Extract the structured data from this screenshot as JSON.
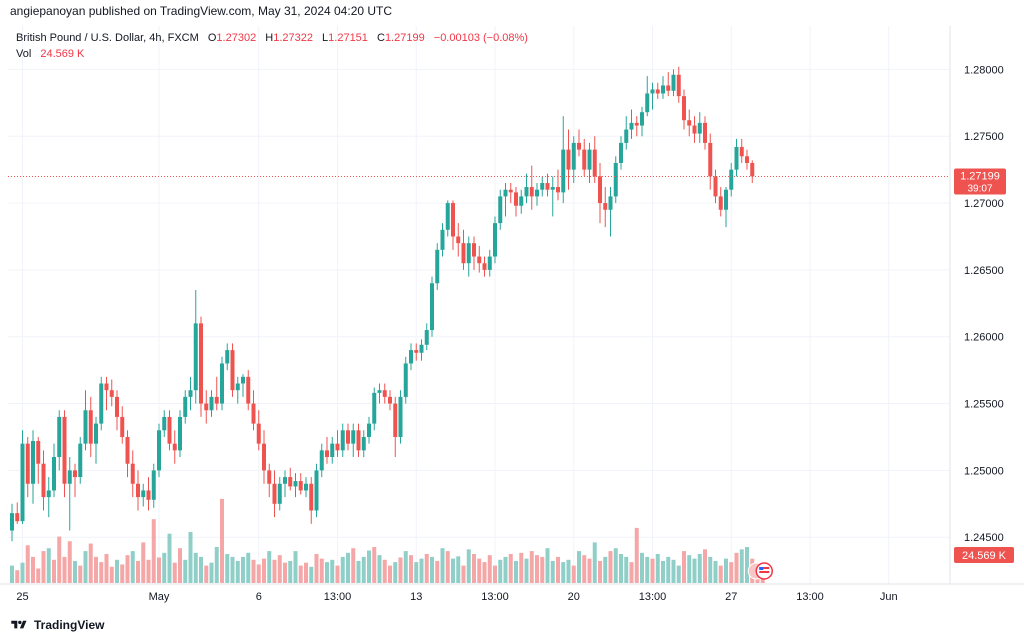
{
  "header": {
    "publisher_text": "angiepanoyan published on TradingView.com, May 31, 2024 04:20 UTC"
  },
  "legend": {
    "symbol": "British Pound / U.S. Dollar, 4h, FXCM",
    "o_label": "O",
    "o_value": "1.27302",
    "h_label": "H",
    "h_value": "1.27322",
    "l_label": "L",
    "l_value": "1.27151",
    "c_label": "C",
    "c_value": "1.27199",
    "change": "−0.00103 (−0.08%)",
    "vol_label": "Vol",
    "vol_value": "24.569 K"
  },
  "price_badge": {
    "price": "1.27199",
    "countdown": "39:07"
  },
  "volume_badge": "24.569 K",
  "footer": {
    "brand": "TradingView"
  },
  "colors": {
    "up": "#26a69a",
    "down": "#ef5350",
    "up_vol": "#8fcfc8",
    "down_vol": "#f5a6a6",
    "grid": "#f0f3fa",
    "axis_text": "#131722"
  },
  "chart_data": {
    "type": "candlestick",
    "ylim": [
      1.2415,
      1.2825
    ],
    "y_ticks": [
      1.245,
      1.25,
      1.255,
      1.26,
      1.265,
      1.27,
      1.275,
      1.28
    ],
    "y_tick_labels": [
      "1.24500",
      "1.25000",
      "1.25500",
      "1.26000",
      "1.26500",
      "1.27000",
      "1.27500",
      "1.28000"
    ],
    "x_tick_labels": [
      {
        "index": 2,
        "label": "25"
      },
      {
        "index": 28,
        "label": "May"
      },
      {
        "index": 47,
        "label": "6"
      },
      {
        "index": 62,
        "label": "13:00"
      },
      {
        "index": 77,
        "label": "13"
      },
      {
        "index": 92,
        "label": "13:00"
      },
      {
        "index": 107,
        "label": "20"
      },
      {
        "index": 122,
        "label": "13:00"
      },
      {
        "index": 137,
        "label": "27"
      },
      {
        "index": 152,
        "label": "13:00"
      },
      {
        "index": 167,
        "label": "Jun"
      }
    ],
    "last_close": 1.27199,
    "ohlc": [
      [
        1.2455,
        1.2475,
        1.2447,
        1.2468
      ],
      [
        1.2468,
        1.2476,
        1.246,
        1.2462
      ],
      [
        1.2462,
        1.253,
        1.246,
        1.252
      ],
      [
        1.252,
        1.2525,
        1.248,
        1.249
      ],
      [
        1.249,
        1.253,
        1.2475,
        1.2522
      ],
      [
        1.2522,
        1.2525,
        1.249,
        1.2505
      ],
      [
        1.2505,
        1.2515,
        1.247,
        1.248
      ],
      [
        1.248,
        1.2495,
        1.2465,
        1.2485
      ],
      [
        1.2485,
        1.252,
        1.248,
        1.251
      ],
      [
        1.251,
        1.2545,
        1.25,
        1.254
      ],
      [
        1.254,
        1.2545,
        1.248,
        1.249
      ],
      [
        1.249,
        1.251,
        1.2455,
        1.25
      ],
      [
        1.25,
        1.2505,
        1.248,
        1.2495
      ],
      [
        1.2495,
        1.2525,
        1.249,
        1.252
      ],
      [
        1.252,
        1.256,
        1.2515,
        1.2545
      ],
      [
        1.2545,
        1.2555,
        1.251,
        1.252
      ],
      [
        1.252,
        1.254,
        1.2505,
        1.2535
      ],
      [
        1.2535,
        1.257,
        1.253,
        1.2565
      ],
      [
        1.2565,
        1.257,
        1.2545,
        1.256
      ],
      [
        1.256,
        1.2568,
        1.2548,
        1.2555
      ],
      [
        1.2555,
        1.256,
        1.253,
        1.254
      ],
      [
        1.254,
        1.2548,
        1.252,
        1.2525
      ],
      [
        1.2525,
        1.253,
        1.2495,
        1.2505
      ],
      [
        1.2505,
        1.2515,
        1.248,
        1.249
      ],
      [
        1.249,
        1.25,
        1.247,
        1.248
      ],
      [
        1.248,
        1.249,
        1.2473,
        1.2485
      ],
      [
        1.2485,
        1.2495,
        1.247,
        1.2478
      ],
      [
        1.2478,
        1.2505,
        1.2472,
        1.25
      ],
      [
        1.25,
        1.2535,
        1.2495,
        1.253
      ],
      [
        1.253,
        1.2545,
        1.2525,
        1.254
      ],
      [
        1.254,
        1.2545,
        1.2515,
        1.252
      ],
      [
        1.252,
        1.253,
        1.2505,
        1.2515
      ],
      [
        1.2515,
        1.2545,
        1.251,
        1.254
      ],
      [
        1.254,
        1.256,
        1.2535,
        1.2555
      ],
      [
        1.2555,
        1.257,
        1.2545,
        1.256
      ],
      [
        1.256,
        1.2635,
        1.255,
        1.261
      ],
      [
        1.261,
        1.2615,
        1.254,
        1.255
      ],
      [
        1.255,
        1.256,
        1.2535,
        1.2545
      ],
      [
        1.2545,
        1.256,
        1.254,
        1.2555
      ],
      [
        1.2555,
        1.257,
        1.2545,
        1.255
      ],
      [
        1.255,
        1.2585,
        1.2545,
        1.258
      ],
      [
        1.258,
        1.2595,
        1.2575,
        1.259
      ],
      [
        1.259,
        1.2595,
        1.2555,
        1.256
      ],
      [
        1.256,
        1.257,
        1.255,
        1.2565
      ],
      [
        1.2565,
        1.2572,
        1.2555,
        1.257
      ],
      [
        1.257,
        1.2575,
        1.2545,
        1.255
      ],
      [
        1.255,
        1.256,
        1.253,
        1.2535
      ],
      [
        1.2535,
        1.2545,
        1.2515,
        1.252
      ],
      [
        1.252,
        1.253,
        1.249,
        1.25
      ],
      [
        1.25,
        1.2505,
        1.248,
        1.249
      ],
      [
        1.249,
        1.25,
        1.2465,
        1.2475
      ],
      [
        1.2475,
        1.2495,
        1.247,
        1.249
      ],
      [
        1.249,
        1.25,
        1.248,
        1.2495
      ],
      [
        1.2495,
        1.2502,
        1.2485,
        1.2488
      ],
      [
        1.2488,
        1.2498,
        1.248,
        1.2492
      ],
      [
        1.2492,
        1.2498,
        1.2482,
        1.2485
      ],
      [
        1.2485,
        1.2495,
        1.248,
        1.249
      ],
      [
        1.249,
        1.2495,
        1.246,
        1.247
      ],
      [
        1.247,
        1.2505,
        1.2465,
        1.25
      ],
      [
        1.25,
        1.252,
        1.2495,
        1.2515
      ],
      [
        1.2515,
        1.2525,
        1.2505,
        1.251
      ],
      [
        1.251,
        1.2525,
        1.2505,
        1.252
      ],
      [
        1.252,
        1.253,
        1.251,
        1.2515
      ],
      [
        1.2515,
        1.2535,
        1.251,
        1.253
      ],
      [
        1.253,
        1.2535,
        1.2515,
        1.252
      ],
      [
        1.252,
        1.2535,
        1.251,
        1.253
      ],
      [
        1.253,
        1.2535,
        1.251,
        1.2515
      ],
      [
        1.2515,
        1.253,
        1.251,
        1.2525
      ],
      [
        1.2525,
        1.254,
        1.252,
        1.2535
      ],
      [
        1.2535,
        1.2562,
        1.253,
        1.2558
      ],
      [
        1.2558,
        1.2565,
        1.255,
        1.256
      ],
      [
        1.256,
        1.2565,
        1.255,
        1.2555
      ],
      [
        1.2555,
        1.256,
        1.2545,
        1.255
      ],
      [
        1.255,
        1.2555,
        1.251,
        1.2525
      ],
      [
        1.2525,
        1.256,
        1.252,
        1.2555
      ],
      [
        1.2555,
        1.2585,
        1.255,
        1.258
      ],
      [
        1.258,
        1.2595,
        1.2575,
        1.259
      ],
      [
        1.259,
        1.2595,
        1.2582,
        1.2588
      ],
      [
        1.2588,
        1.2598,
        1.2582,
        1.2594
      ],
      [
        1.2594,
        1.261,
        1.259,
        1.2605
      ],
      [
        1.2605,
        1.2645,
        1.26,
        1.264
      ],
      [
        1.264,
        1.267,
        1.2635,
        1.2665
      ],
      [
        1.2665,
        1.2685,
        1.266,
        1.268
      ],
      [
        1.268,
        1.2702,
        1.2675,
        1.27
      ],
      [
        1.27,
        1.2702,
        1.2665,
        1.2675
      ],
      [
        1.2675,
        1.2685,
        1.266,
        1.267
      ],
      [
        1.267,
        1.268,
        1.265,
        1.2655
      ],
      [
        1.2655,
        1.2675,
        1.2645,
        1.267
      ],
      [
        1.267,
        1.2675,
        1.265,
        1.266
      ],
      [
        1.266,
        1.2668,
        1.2648,
        1.2655
      ],
      [
        1.2655,
        1.266,
        1.2645,
        1.265
      ],
      [
        1.265,
        1.2665,
        1.2645,
        1.266
      ],
      [
        1.266,
        1.269,
        1.2655,
        1.2685
      ],
      [
        1.2685,
        1.271,
        1.268,
        1.2705
      ],
      [
        1.2705,
        1.2715,
        1.269,
        1.271
      ],
      [
        1.271,
        1.2715,
        1.27,
        1.2708
      ],
      [
        1.2708,
        1.2712,
        1.269,
        1.2698
      ],
      [
        1.2698,
        1.271,
        1.2692,
        1.2705
      ],
      [
        1.2705,
        1.2722,
        1.27,
        1.2712
      ],
      [
        1.2712,
        1.2728,
        1.2695,
        1.2705
      ],
      [
        1.2705,
        1.2715,
        1.2698,
        1.271
      ],
      [
        1.271,
        1.272,
        1.2705,
        1.2715
      ],
      [
        1.2715,
        1.2722,
        1.2705,
        1.271
      ],
      [
        1.271,
        1.272,
        1.269,
        1.2712
      ],
      [
        1.2712,
        1.2725,
        1.2702,
        1.2708
      ],
      [
        1.2708,
        1.2765,
        1.27,
        1.274
      ],
      [
        1.274,
        1.2755,
        1.271,
        1.2725
      ],
      [
        1.2725,
        1.275,
        1.2715,
        1.2745
      ],
      [
        1.2745,
        1.2755,
        1.2735,
        1.274
      ],
      [
        1.274,
        1.2748,
        1.272,
        1.2725
      ],
      [
        1.2725,
        1.2745,
        1.2715,
        1.274
      ],
      [
        1.274,
        1.275,
        1.2715,
        1.272
      ],
      [
        1.272,
        1.273,
        1.2685,
        1.27
      ],
      [
        1.27,
        1.2712,
        1.2682,
        1.2695
      ],
      [
        1.2695,
        1.2712,
        1.2675,
        1.2705
      ],
      [
        1.2705,
        1.2735,
        1.27,
        1.273
      ],
      [
        1.273,
        1.275,
        1.2725,
        1.2745
      ],
      [
        1.2745,
        1.2765,
        1.274,
        1.2755
      ],
      [
        1.2755,
        1.277,
        1.2748,
        1.276
      ],
      [
        1.276,
        1.2765,
        1.275,
        1.2758
      ],
      [
        1.2758,
        1.2772,
        1.275,
        1.2768
      ],
      [
        1.2768,
        1.2795,
        1.2765,
        1.2782
      ],
      [
        1.2782,
        1.279,
        1.277,
        1.2785
      ],
      [
        1.2785,
        1.279,
        1.2778,
        1.2782
      ],
      [
        1.2782,
        1.2795,
        1.2778,
        1.2788
      ],
      [
        1.2788,
        1.2798,
        1.278,
        1.2784
      ],
      [
        1.2784,
        1.28,
        1.278,
        1.2796
      ],
      [
        1.2796,
        1.2802,
        1.2775,
        1.278
      ],
      [
        1.278,
        1.2785,
        1.2755,
        1.2762
      ],
      [
        1.2762,
        1.277,
        1.275,
        1.2758
      ],
      [
        1.2758,
        1.2765,
        1.2745,
        1.2752
      ],
      [
        1.2752,
        1.2768,
        1.2745,
        1.276
      ],
      [
        1.276,
        1.2765,
        1.274,
        1.2745
      ],
      [
        1.2745,
        1.2752,
        1.271,
        1.272
      ],
      [
        1.272,
        1.2725,
        1.27,
        1.2705
      ],
      [
        1.2705,
        1.2712,
        1.269,
        1.2695
      ],
      [
        1.2695,
        1.2712,
        1.2682,
        1.271
      ],
      [
        1.271,
        1.273,
        1.2705,
        1.2725
      ],
      [
        1.2725,
        1.2748,
        1.272,
        1.2742
      ],
      [
        1.2742,
        1.2748,
        1.273,
        1.2735
      ],
      [
        1.2735,
        1.274,
        1.2725,
        1.273
      ],
      [
        1.273,
        1.2732,
        1.2715,
        1.272
      ]
    ],
    "volume": [
      [
        0.3,
        1
      ],
      [
        0.22,
        0
      ],
      [
        0.35,
        1
      ],
      [
        0.65,
        0
      ],
      [
        0.45,
        0
      ],
      [
        0.25,
        0
      ],
      [
        0.55,
        0
      ],
      [
        0.6,
        1
      ],
      [
        0.4,
        0
      ],
      [
        0.8,
        0
      ],
      [
        0.45,
        0
      ],
      [
        0.72,
        0
      ],
      [
        0.38,
        1
      ],
      [
        0.3,
        0
      ],
      [
        0.55,
        1
      ],
      [
        0.68,
        0
      ],
      [
        0.45,
        0
      ],
      [
        0.36,
        0
      ],
      [
        0.5,
        0
      ],
      [
        0.28,
        0
      ],
      [
        0.4,
        1
      ],
      [
        0.32,
        0
      ],
      [
        0.48,
        0
      ],
      [
        0.55,
        1
      ],
      [
        0.38,
        0
      ],
      [
        0.7,
        0
      ],
      [
        0.4,
        0
      ],
      [
        1.1,
        0
      ],
      [
        0.44,
        0
      ],
      [
        0.52,
        1
      ],
      [
        0.85,
        1
      ],
      [
        0.35,
        0
      ],
      [
        0.6,
        0
      ],
      [
        0.4,
        1
      ],
      [
        0.88,
        1
      ],
      [
        0.52,
        1
      ],
      [
        0.45,
        1
      ],
      [
        0.3,
        0
      ],
      [
        0.35,
        1
      ],
      [
        0.62,
        1
      ],
      [
        1.45,
        0
      ],
      [
        0.5,
        1
      ],
      [
        0.45,
        1
      ],
      [
        0.38,
        1
      ],
      [
        0.45,
        1
      ],
      [
        0.52,
        1
      ],
      [
        0.4,
        0
      ],
      [
        0.32,
        0
      ],
      [
        0.42,
        0
      ],
      [
        0.55,
        1
      ],
      [
        0.4,
        0
      ],
      [
        0.48,
        0
      ],
      [
        0.35,
        0
      ],
      [
        0.38,
        1
      ],
      [
        0.55,
        1
      ],
      [
        0.3,
        0
      ],
      [
        0.35,
        0
      ],
      [
        0.28,
        1
      ],
      [
        0.5,
        0
      ],
      [
        0.42,
        0
      ],
      [
        0.36,
        1
      ],
      [
        0.4,
        1
      ],
      [
        0.3,
        0
      ],
      [
        0.45,
        1
      ],
      [
        0.52,
        1
      ],
      [
        0.6,
        0
      ],
      [
        0.38,
        1
      ],
      [
        0.45,
        1
      ],
      [
        0.56,
        1
      ],
      [
        0.62,
        0
      ],
      [
        0.48,
        1
      ],
      [
        0.4,
        0
      ],
      [
        0.3,
        0
      ],
      [
        0.36,
        1
      ],
      [
        0.44,
        0
      ],
      [
        0.55,
        1
      ],
      [
        0.48,
        0
      ],
      [
        0.36,
        1
      ],
      [
        0.42,
        1
      ],
      [
        0.5,
        0
      ],
      [
        0.45,
        1
      ],
      [
        0.38,
        0
      ],
      [
        0.6,
        1
      ],
      [
        0.55,
        0
      ],
      [
        0.42,
        1
      ],
      [
        0.46,
        1
      ],
      [
        0.3,
        0
      ],
      [
        0.58,
        1
      ],
      [
        0.5,
        0
      ],
      [
        0.42,
        0
      ],
      [
        0.36,
        0
      ],
      [
        0.48,
        0
      ],
      [
        0.3,
        0
      ],
      [
        0.4,
        1
      ],
      [
        0.45,
        1
      ],
      [
        0.5,
        0
      ],
      [
        0.38,
        1
      ],
      [
        0.52,
        0
      ],
      [
        0.42,
        1
      ],
      [
        0.55,
        0
      ],
      [
        0.48,
        0
      ],
      [
        0.45,
        0
      ],
      [
        0.6,
        1
      ],
      [
        0.38,
        1
      ],
      [
        0.45,
        0
      ],
      [
        0.36,
        1
      ],
      [
        0.4,
        1
      ],
      [
        0.3,
        0
      ],
      [
        0.55,
        1
      ],
      [
        0.48,
        0
      ],
      [
        0.42,
        0
      ],
      [
        0.7,
        1
      ],
      [
        0.38,
        0
      ],
      [
        0.45,
        1
      ],
      [
        0.55,
        0
      ],
      [
        0.6,
        1
      ],
      [
        0.5,
        1
      ],
      [
        0.45,
        1
      ],
      [
        0.36,
        0
      ],
      [
        0.95,
        0
      ],
      [
        0.52,
        1
      ],
      [
        0.45,
        1
      ],
      [
        0.42,
        0
      ],
      [
        0.5,
        1
      ],
      [
        0.38,
        1
      ],
      [
        0.45,
        1
      ],
      [
        0.4,
        1
      ],
      [
        0.3,
        1
      ],
      [
        0.55,
        0
      ],
      [
        0.48,
        1
      ],
      [
        0.42,
        1
      ],
      [
        0.5,
        1
      ],
      [
        0.58,
        0
      ],
      [
        0.45,
        1
      ],
      [
        0.38,
        1
      ],
      [
        0.3,
        0
      ],
      [
        0.42,
        1
      ],
      [
        0.36,
        0
      ],
      [
        0.52,
        0
      ],
      [
        0.58,
        1
      ],
      [
        0.62,
        1
      ],
      [
        0.42,
        0
      ],
      [
        0.3,
        0
      ],
      [
        0.25,
        0
      ]
    ]
  }
}
